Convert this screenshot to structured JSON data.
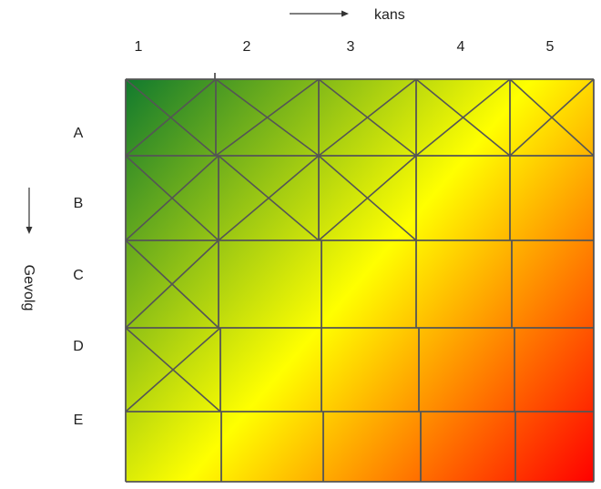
{
  "x_axis": {
    "label": "kans",
    "ticks": [
      "1",
      "2",
      "3",
      "4",
      "5"
    ]
  },
  "y_axis": {
    "label": "Gevolg",
    "ticks": [
      "A",
      "B",
      "C",
      "D",
      "E"
    ]
  },
  "gradient": {
    "from": "#117a2e",
    "mid": "#ffff00",
    "to": "#ff0000"
  },
  "crossed_cells": [
    [
      "A",
      "1"
    ],
    [
      "A",
      "2"
    ],
    [
      "A",
      "3"
    ],
    [
      "A",
      "4"
    ],
    [
      "A",
      "5"
    ],
    [
      "B",
      "1"
    ],
    [
      "B",
      "2"
    ],
    [
      "B",
      "3"
    ],
    [
      "C",
      "1"
    ],
    [
      "D",
      "1"
    ]
  ]
}
